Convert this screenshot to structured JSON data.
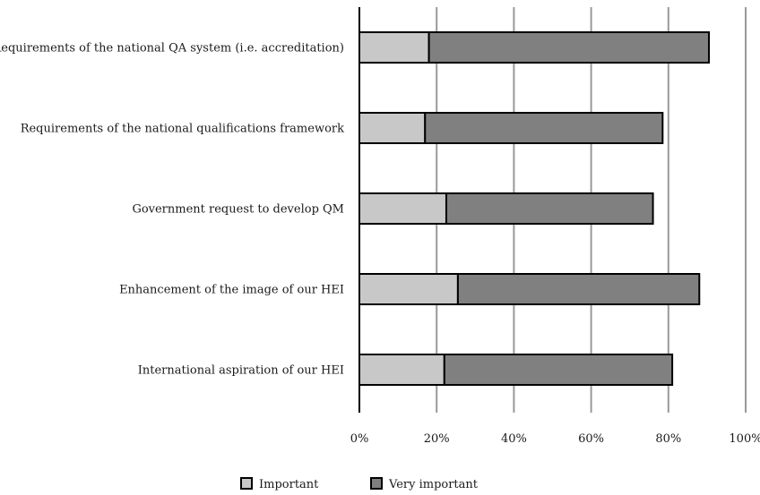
{
  "chart_data": {
    "type": "bar",
    "orientation": "horizontal",
    "stacked": true,
    "categories": [
      "Requirements of the national QA system (i.e. accreditation)",
      "Requirements of the national qualifications framework",
      "Government request to develop QM",
      "Enhancement of the image of our HEI",
      "International aspiration of our HEI"
    ],
    "series": [
      {
        "name": "Important",
        "values": [
          18,
          17,
          22.5,
          25.5,
          22
        ],
        "color": "#c8c8c8"
      },
      {
        "name": "Very important",
        "values": [
          72.5,
          61.5,
          53.5,
          62.5,
          59
        ],
        "color": "#808080"
      }
    ],
    "xlim": [
      0,
      100
    ],
    "xticks": [
      0,
      20,
      40,
      60,
      80,
      100
    ],
    "tick_labels": [
      "0%",
      "20%",
      "40%",
      "60%",
      "80%",
      "100%"
    ],
    "grid": "vertical",
    "legend_position": "bottom",
    "title": "",
    "xlabel": "",
    "ylabel": ""
  }
}
